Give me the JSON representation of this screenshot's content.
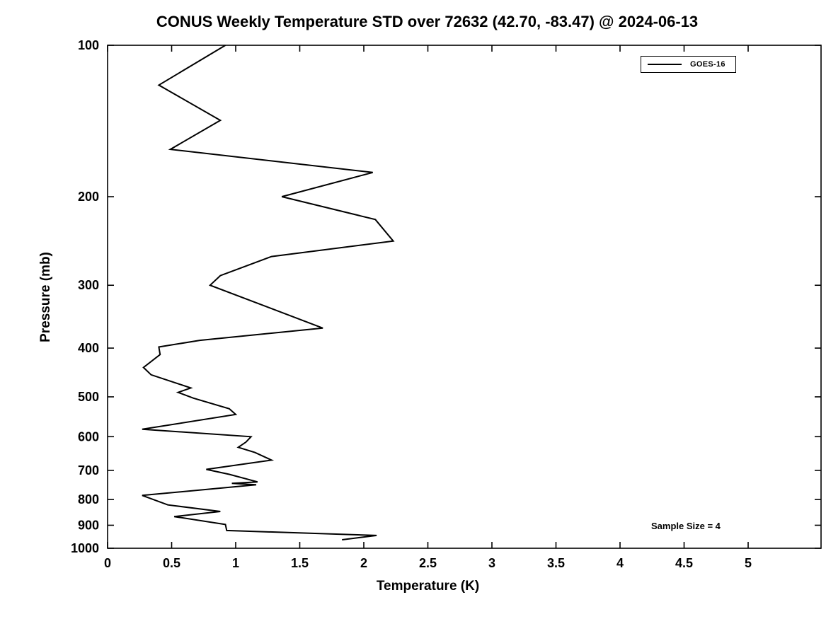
{
  "figure": {
    "title": "CONUS Weekly Temperature STD over 72632 (42.70, -83.47) @ 2024-06-13"
  },
  "chart_data": {
    "type": "line",
    "title": "CONUS Weekly Temperature STD over 72632 (42.70, -83.47) @ 2024-06-13",
    "xlabel": "Temperature (K)",
    "ylabel": "Pressure (mb)",
    "xlim": [
      0,
      5
    ],
    "ylim": [
      100,
      1000
    ],
    "yscale": "log",
    "y_axis_direction": "reversed (pressure increases downward)",
    "grid": false,
    "legend_position": "top-right",
    "xticks": [
      0,
      0.5,
      1,
      1.5,
      2,
      2.5,
      3,
      3.5,
      4,
      4.5,
      5
    ],
    "yticks": [
      100,
      200,
      300,
      400,
      500,
      600,
      700,
      800,
      900,
      1000
    ],
    "annotations": [
      {
        "text": "Sample Size = 4",
        "position": "bottom-right"
      }
    ],
    "series": [
      {
        "name": "GOES-16",
        "color": "#000000",
        "point_format": "[temperature_std_K, pressure_mb]",
        "points": [
          [
            0.92,
            100
          ],
          [
            0.4,
            120
          ],
          [
            0.88,
            141
          ],
          [
            0.49,
            161
          ],
          [
            2.07,
            179
          ],
          [
            1.36,
            200
          ],
          [
            2.09,
            222
          ],
          [
            2.23,
            245
          ],
          [
            1.28,
            263
          ],
          [
            0.88,
            287
          ],
          [
            0.8,
            300
          ],
          [
            1.68,
            365
          ],
          [
            0.72,
            386
          ],
          [
            0.4,
            398
          ],
          [
            0.41,
            412
          ],
          [
            0.28,
            437
          ],
          [
            0.34,
            452
          ],
          [
            0.65,
            480
          ],
          [
            0.55,
            490
          ],
          [
            0.67,
            503
          ],
          [
            0.95,
            528
          ],
          [
            1.0,
            542
          ],
          [
            0.27,
            580
          ],
          [
            1.12,
            600
          ],
          [
            1.08,
            615
          ],
          [
            1.02,
            630
          ],
          [
            1.15,
            645
          ],
          [
            1.28,
            668
          ],
          [
            0.77,
            697
          ],
          [
            0.95,
            713
          ],
          [
            1.17,
            738
          ],
          [
            0.97,
            743
          ],
          [
            1.16,
            748
          ],
          [
            0.27,
            785
          ],
          [
            0.47,
            820
          ],
          [
            0.88,
            845
          ],
          [
            0.52,
            865
          ],
          [
            0.92,
            897
          ],
          [
            0.93,
            922
          ],
          [
            2.1,
            943
          ],
          [
            1.83,
            962
          ]
        ]
      }
    ]
  }
}
